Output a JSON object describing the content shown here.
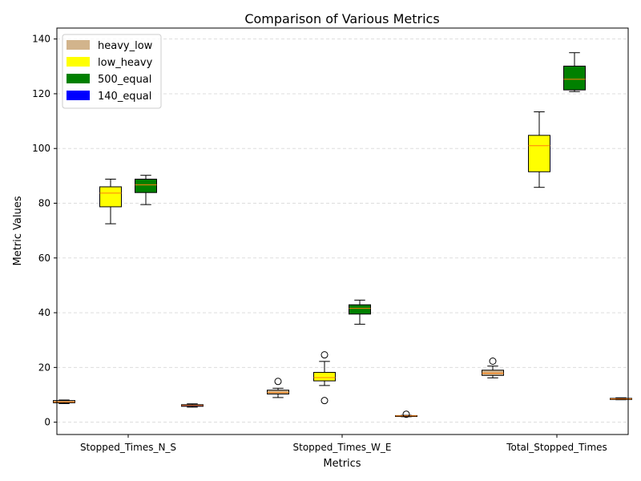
{
  "chart_data": {
    "type": "boxplot",
    "title": "Comparison of Various Metrics",
    "xlabel": "Metrics",
    "ylabel": "Metric Values",
    "ylim": [
      -4.5,
      144
    ],
    "yticks": [
      0,
      20,
      40,
      60,
      80,
      100,
      120,
      140
    ],
    "grid": "y-dashed",
    "legend_position": "top-left",
    "categories": [
      "Stopped_Times_N_S",
      "Stopped_Times_W_E",
      "Total_Stopped_Times"
    ],
    "series": [
      {
        "name": "heavy_low",
        "color": "#d2b48c",
        "boxes": [
          {
            "whislo": 6.8,
            "q1": 7.1,
            "med": 7.4,
            "q3": 7.9,
            "whishi": 8.1,
            "fliers": []
          },
          {
            "whislo": 9.0,
            "q1": 10.3,
            "med": 10.8,
            "q3": 11.7,
            "whishi": 12.4,
            "fliers": [
              14.9
            ]
          },
          {
            "whislo": 16.2,
            "q1": 17.1,
            "med": 17.9,
            "q3": 19.0,
            "whishi": 20.5,
            "fliers": [
              22.3
            ]
          }
        ]
      },
      {
        "name": "low_heavy",
        "color": "#ffff00",
        "boxes": [
          {
            "whislo": 72.5,
            "q1": 78.7,
            "med": 83.7,
            "q3": 86.0,
            "whishi": 88.8,
            "fliers": []
          },
          {
            "whislo": 13.4,
            "q1": 15.1,
            "med": 16.3,
            "q3": 18.2,
            "whishi": 22.2,
            "fliers": [
              24.6,
              7.9
            ]
          },
          {
            "whislo": 85.8,
            "q1": 91.5,
            "med": 101.0,
            "q3": 104.8,
            "whishi": 113.4,
            "fliers": []
          }
        ]
      },
      {
        "name": "500_equal",
        "color": "#008000",
        "boxes": [
          {
            "whislo": 79.5,
            "q1": 83.9,
            "med": 86.7,
            "q3": 88.8,
            "whishi": 90.2,
            "fliers": []
          },
          {
            "whislo": 35.8,
            "q1": 39.5,
            "med": 41.6,
            "q3": 42.9,
            "whishi": 44.6,
            "fliers": []
          },
          {
            "whislo": 120.8,
            "q1": 121.4,
            "med": 125.3,
            "q3": 130.1,
            "whishi": 135.0,
            "fliers": []
          }
        ]
      },
      {
        "name": "140_equal",
        "color": "#0000ff",
        "boxes": [
          {
            "whislo": 5.5,
            "q1": 5.8,
            "med": 6.1,
            "q3": 6.4,
            "whishi": 6.7,
            "fliers": []
          },
          {
            "whislo": 2.0,
            "q1": 2.1,
            "med": 2.3,
            "q3": 2.4,
            "whishi": 2.5,
            "fliers": [
              2.9
            ]
          },
          {
            "whislo": 8.2,
            "q1": 8.3,
            "med": 8.5,
            "q3": 8.7,
            "whishi": 8.9,
            "fliers": []
          }
        ]
      }
    ],
    "median_color": "#ff7f0e"
  }
}
